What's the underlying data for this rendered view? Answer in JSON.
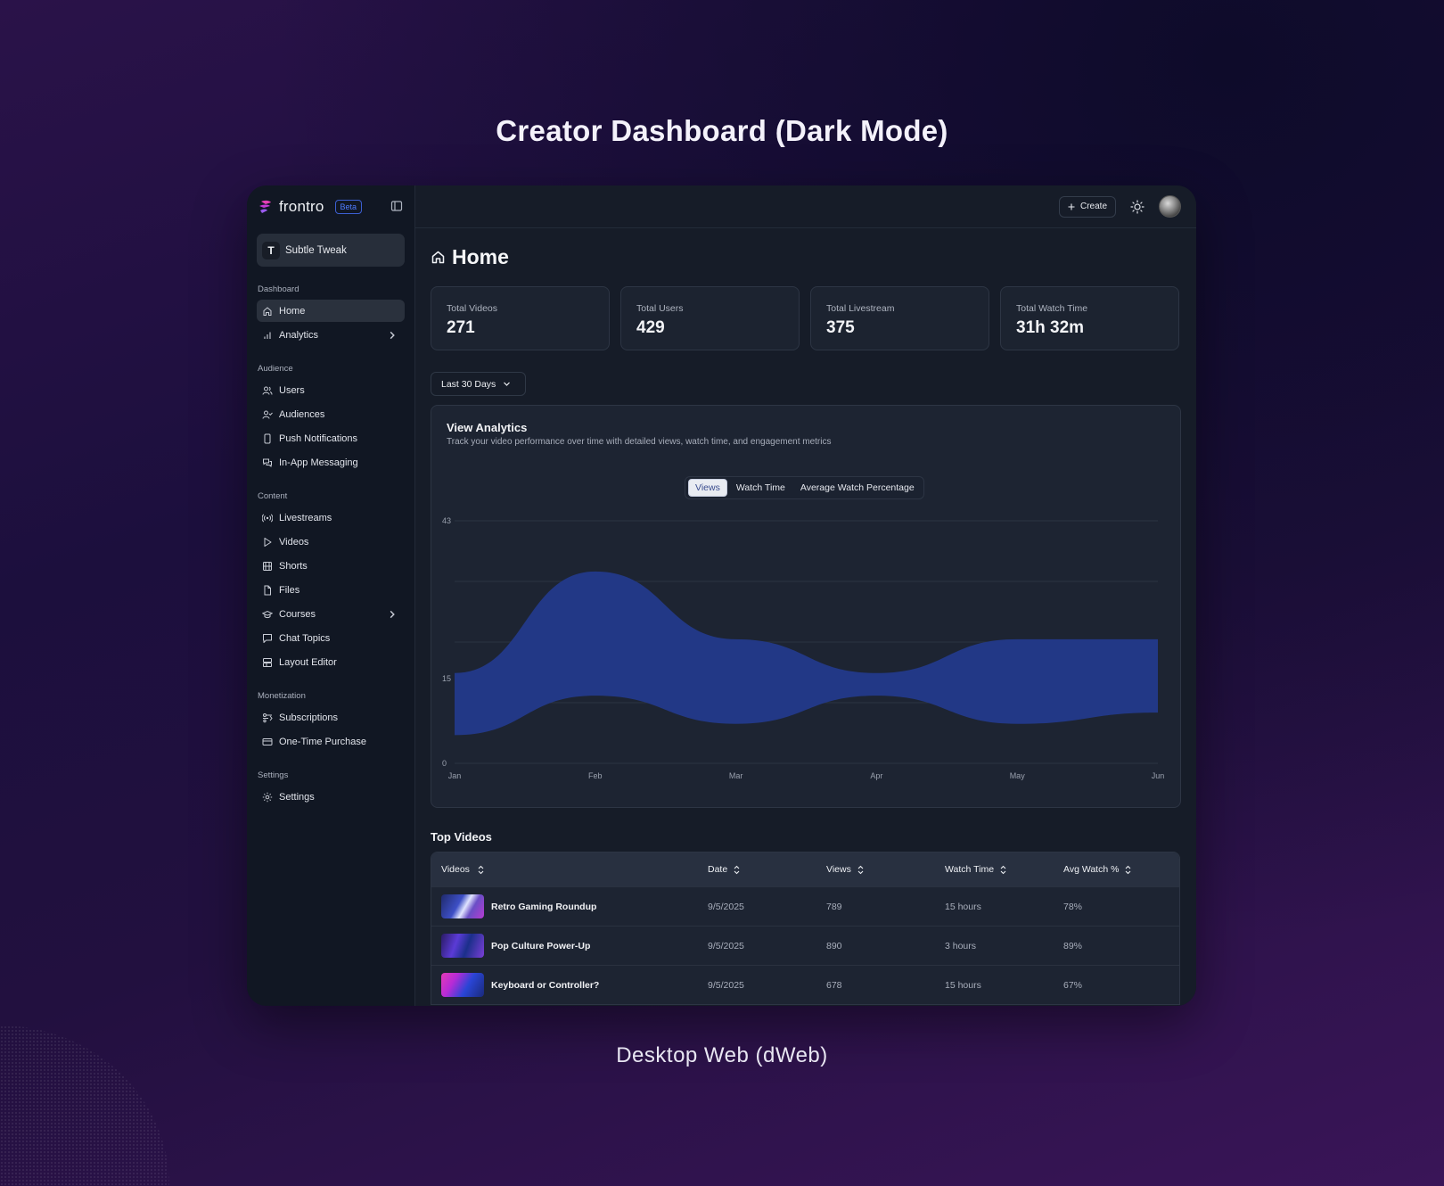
{
  "hero": {
    "title": "Creator Dashboard (Dark Mode)",
    "caption": "Desktop Web (dWeb)"
  },
  "sidebar": {
    "brand": "frontro",
    "badge": "Beta",
    "workspace_initial": "T",
    "workspace_name": "Subtle Tweak",
    "groups": [
      {
        "label": "Dashboard",
        "items": [
          {
            "label": "Home",
            "icon": "home-icon",
            "active": true
          },
          {
            "label": "Analytics",
            "icon": "bar-chart-icon",
            "chevron": true
          }
        ]
      },
      {
        "label": "Audience",
        "items": [
          {
            "label": "Users",
            "icon": "users-icon"
          },
          {
            "label": "Audiences",
            "icon": "user-check-icon"
          },
          {
            "label": "Push Notifications",
            "icon": "phone-icon"
          },
          {
            "label": "In-App Messaging",
            "icon": "messages-icon"
          }
        ]
      },
      {
        "label": "Content",
        "items": [
          {
            "label": "Livestreams",
            "icon": "broadcast-icon"
          },
          {
            "label": "Videos",
            "icon": "play-icon"
          },
          {
            "label": "Shorts",
            "icon": "film-icon"
          },
          {
            "label": "Files",
            "icon": "file-icon"
          },
          {
            "label": "Courses",
            "icon": "graduation-cap-icon",
            "chevron": true
          },
          {
            "label": "Chat Topics",
            "icon": "chat-icon"
          },
          {
            "label": "Layout Editor",
            "icon": "layout-icon"
          }
        ]
      },
      {
        "label": "Monetization",
        "items": [
          {
            "label": "Subscriptions",
            "icon": "subscriptions-icon"
          },
          {
            "label": "One-Time Purchase",
            "icon": "credit-card-icon"
          }
        ]
      },
      {
        "label": "Settings",
        "items": [
          {
            "label": "Settings",
            "icon": "gear-icon"
          }
        ]
      }
    ]
  },
  "topbar": {
    "create_label": "Create"
  },
  "page": {
    "title": "Home"
  },
  "stats": [
    {
      "label": "Total Videos",
      "value": "271"
    },
    {
      "label": "Total Users",
      "value": "429"
    },
    {
      "label": "Total Livestream",
      "value": "375"
    },
    {
      "label": "Total Watch Time",
      "value": "31h 32m"
    }
  ],
  "range": {
    "selected": "Last 30 Days"
  },
  "analytics": {
    "title": "View Analytics",
    "subtitle": "Track your video performance over time with detailed views, watch time, and engagement metrics",
    "tabs": [
      "Views",
      "Watch Time",
      "Average Watch Percentage"
    ],
    "active_tab": 0
  },
  "chart_data": {
    "type": "area",
    "x": [
      "Jan",
      "Feb",
      "Mar",
      "Apr",
      "May",
      "Jun"
    ],
    "y_ticks": [
      0,
      15,
      43
    ],
    "ylim": [
      0,
      43
    ],
    "series": [
      {
        "upper": [
          16,
          34,
          22,
          16,
          22,
          22
        ],
        "lower": [
          5,
          12,
          7,
          12,
          7,
          9
        ]
      }
    ],
    "colors": {
      "fill": "#233a8b",
      "grid": "#2b3342"
    },
    "grid": true
  },
  "top_videos": {
    "title": "Top Videos",
    "columns": [
      "Videos",
      "Date",
      "Views",
      "Watch Time",
      "Avg Watch %"
    ],
    "rows": [
      {
        "name": "Retro Gaming Roundup",
        "date": "9/5/2025",
        "views": "789",
        "watch_time": "15 hours",
        "avg": "78%"
      },
      {
        "name": "Pop Culture Power-Up",
        "date": "9/5/2025",
        "views": "890",
        "watch_time": "3 hours",
        "avg": "89%"
      },
      {
        "name": "Keyboard or Controller?",
        "date": "9/5/2025",
        "views": "678",
        "watch_time": "15 hours",
        "avg": "67%"
      }
    ]
  }
}
